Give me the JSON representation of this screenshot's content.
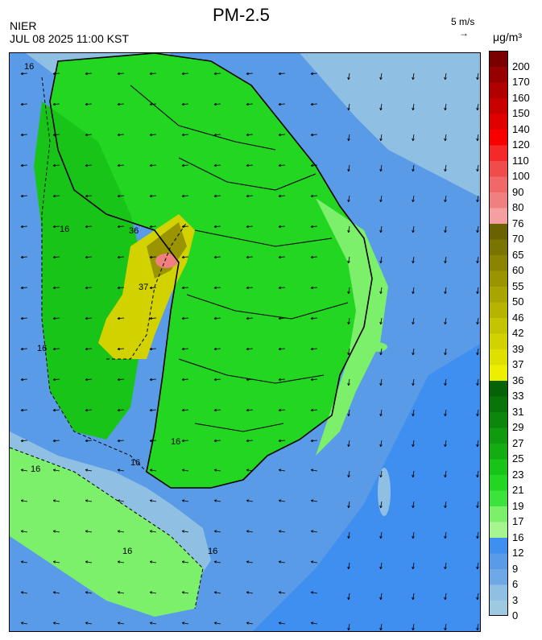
{
  "header": {
    "agency": "NIER",
    "timestamp": "JUL 08 2025 11:00 KST",
    "title": "PM-2.5",
    "wind_reference": "5 m/s",
    "wind_arrow": "→",
    "unit": "μg/m³"
  },
  "legend": {
    "bins": [
      {
        "label": "0",
        "color": "#9ecae1"
      },
      {
        "label": "3",
        "color": "#8fbfe3"
      },
      {
        "label": "6",
        "color": "#6fa8e6"
      },
      {
        "label": "9",
        "color": "#5a9be8"
      },
      {
        "label": "12",
        "color": "#3f8ff0"
      },
      {
        "label": "16",
        "color": "#a6f58f"
      },
      {
        "label": "17",
        "color": "#7cf06a"
      },
      {
        "label": "19",
        "color": "#3ce33c"
      },
      {
        "label": "21",
        "color": "#22d622"
      },
      {
        "label": "23",
        "color": "#19c419"
      },
      {
        "label": "25",
        "color": "#13ad13"
      },
      {
        "label": "27",
        "color": "#0f9a0f"
      },
      {
        "label": "29",
        "color": "#0c870c"
      },
      {
        "label": "31",
        "color": "#097509"
      },
      {
        "label": "33",
        "color": "#066206"
      },
      {
        "label": "36",
        "color": "#eeee00"
      },
      {
        "label": "37",
        "color": "#e0e000"
      },
      {
        "label": "39",
        "color": "#d2d200"
      },
      {
        "label": "42",
        "color": "#c4c400"
      },
      {
        "label": "46",
        "color": "#b6b400"
      },
      {
        "label": "50",
        "color": "#a8a400"
      },
      {
        "label": "55",
        "color": "#9a9400"
      },
      {
        "label": "60",
        "color": "#8a8400"
      },
      {
        "label": "65",
        "color": "#7a7400"
      },
      {
        "label": "70",
        "color": "#6a6200"
      },
      {
        "label": "76",
        "color": "#f4a0a0"
      },
      {
        "label": "80",
        "color": "#f08080"
      },
      {
        "label": "90",
        "color": "#f06868"
      },
      {
        "label": "100",
        "color": "#f04c4c"
      },
      {
        "label": "110",
        "color": "#f42a2a"
      },
      {
        "label": "120",
        "color": "#f80000"
      },
      {
        "label": "140",
        "color": "#e00000"
      },
      {
        "label": "150",
        "color": "#c80000"
      },
      {
        "label": "160",
        "color": "#b00000"
      },
      {
        "label": "170",
        "color": "#960000"
      },
      {
        "label": "200",
        "color": "#7a0000"
      }
    ]
  },
  "map": {
    "sea_colors": [
      "#8fbfe3",
      "#5a9be8",
      "#3f8ff0"
    ],
    "land_green": "#22d622",
    "hotspot_color": "#f08080",
    "contour_labels": [
      "16",
      "16",
      "16",
      "16",
      "16",
      "16",
      "36",
      "37",
      "16",
      "16"
    ]
  }
}
